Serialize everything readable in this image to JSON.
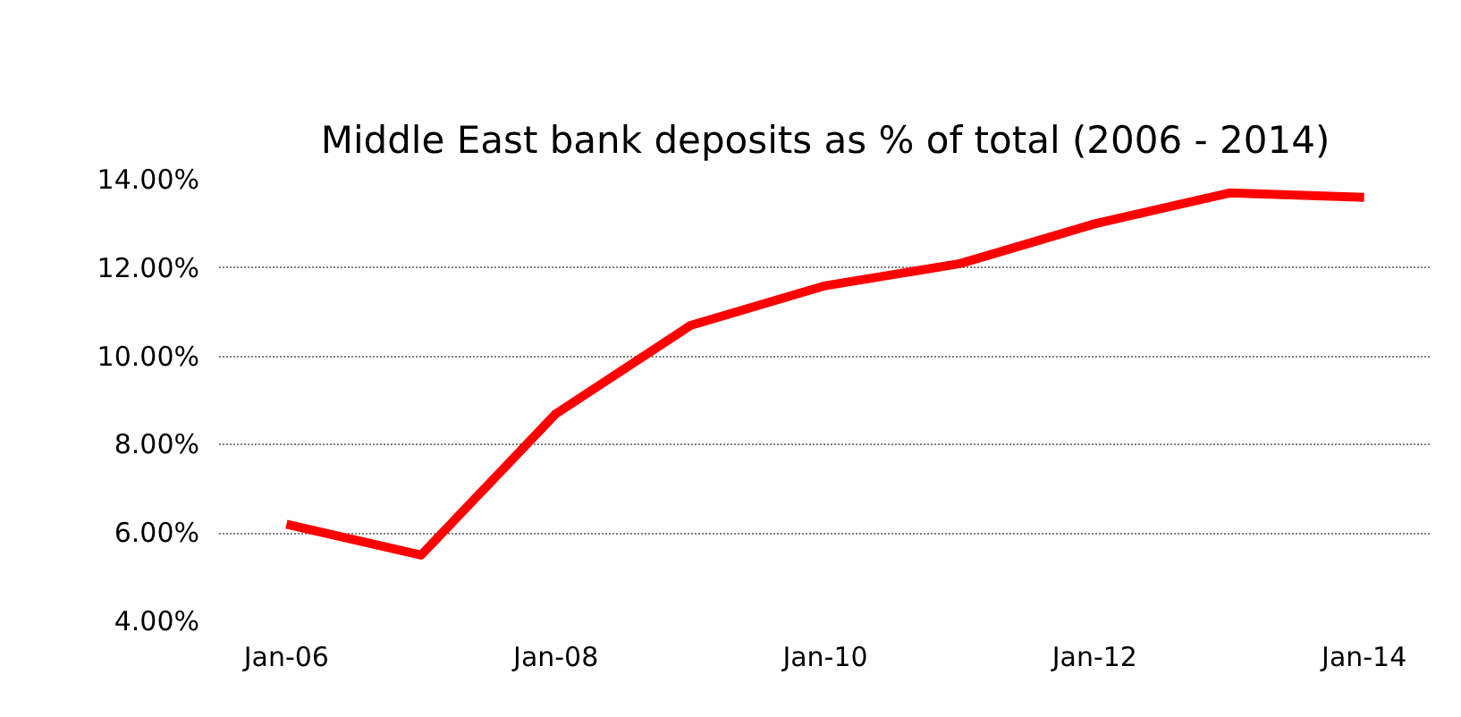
{
  "chart_data": {
    "type": "line",
    "title": "Middle East bank deposits as % of total (2006 - 2014)",
    "categories": [
      "Jan-06",
      null,
      "Jan-08",
      null,
      "Jan-10",
      null,
      "Jan-12",
      null,
      "Jan-14"
    ],
    "series": [
      {
        "color": "#ff0000",
        "values": [
          6.2,
          5.5,
          8.7,
          10.7,
          11.6,
          12.1,
          13.0,
          13.7,
          13.6
        ]
      }
    ],
    "ylim": [
      4,
      14
    ],
    "yticks": [
      {
        "value": 4,
        "label": "4.00%"
      },
      {
        "value": 6,
        "label": "6.00%"
      },
      {
        "value": 8,
        "label": "8.00%"
      },
      {
        "value": 10,
        "label": "10.00%"
      },
      {
        "value": 12,
        "label": "12.00%"
      },
      {
        "value": 14,
        "label": "14.00%"
      }
    ],
    "grid": "y",
    "marker": "none",
    "line_style": "solid"
  }
}
